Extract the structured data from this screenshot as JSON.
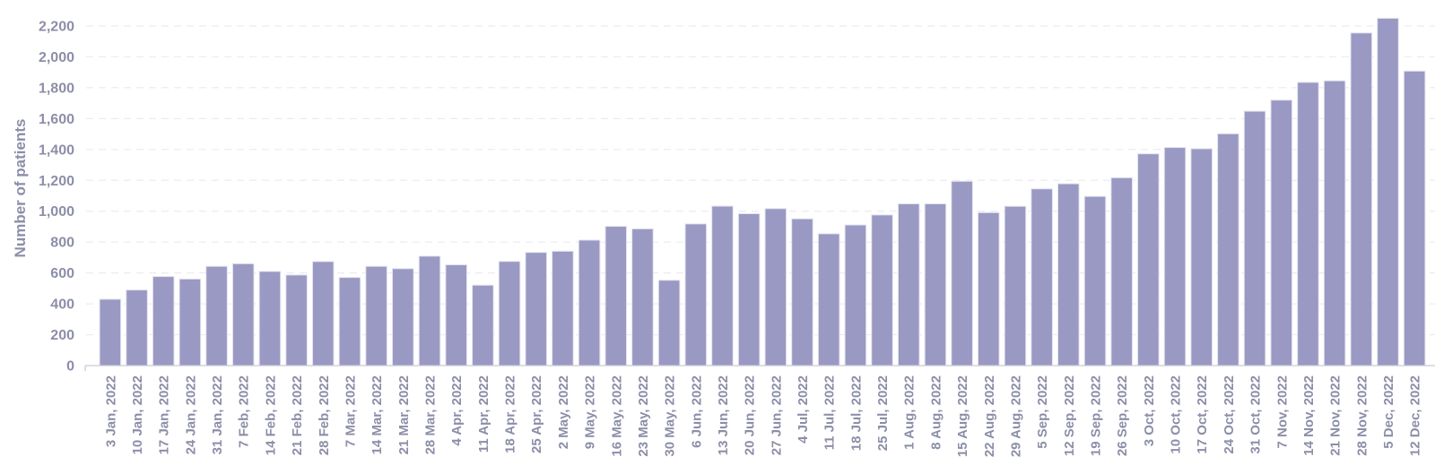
{
  "chart_data": {
    "type": "bar",
    "title": "",
    "xlabel": "",
    "ylabel": "Number of patients",
    "ylim": [
      0,
      2200
    ],
    "yticks": [
      0,
      200,
      400,
      600,
      800,
      1000,
      1200,
      1400,
      1600,
      1800,
      2000,
      2200
    ],
    "ytick_labels": [
      "0",
      "200",
      "400",
      "600",
      "800",
      "1,000",
      "1,200",
      "1,400",
      "1,600",
      "1,800",
      "2,000",
      "2,200"
    ],
    "grid": "horizontal dashed",
    "legend": null,
    "bar_color": "#9999c3",
    "categories": [
      "3 Jan, 2022",
      "10 Jan, 2022",
      "17 Jan, 2022",
      "24 Jan, 2022",
      "31 Jan, 2022",
      "7 Feb, 2022",
      "14 Feb, 2022",
      "21 Feb, 2022",
      "28 Feb, 2022",
      "7 Mar, 2022",
      "14 Mar, 2022",
      "21 Mar, 2022",
      "28 Mar, 2022",
      "4 Apr, 2022",
      "11 Apr, 2022",
      "18 Apr, 2022",
      "25 Apr, 2022",
      "2 May, 2022",
      "9 May, 2022",
      "16 May, 2022",
      "23 May, 2022",
      "30 May, 2022",
      "6 Jun, 2022",
      "13 Jun, 2022",
      "20 Jun, 2022",
      "27 Jun, 2022",
      "4 Jul, 2022",
      "11 Jul, 2022",
      "18 Jul, 2022",
      "25 Jul, 2022",
      "1 Aug, 2022",
      "8 Aug, 2022",
      "15 Aug, 2022",
      "22 Aug, 2022",
      "29 Aug, 2022",
      "5 Sep, 2022",
      "12 Sep, 2022",
      "19 Sep, 2022",
      "26 Sep, 2022",
      "3 Oct, 2022",
      "10 Oct, 2022",
      "17 Oct, 2022",
      "24 Oct, 2022",
      "31 Oct, 2022",
      "7 Nov, 2022",
      "14 Nov, 2022",
      "21 Nov, 2022",
      "28 Nov, 2022",
      "5 Dec, 2022",
      "12 Dec, 2022"
    ],
    "series": [
      {
        "name": "Number of patients",
        "values": [
          430,
          490,
          577,
          561,
          643,
          660,
          610,
          587,
          674,
          571,
          643,
          628,
          709,
          653,
          521,
          675,
          733,
          741,
          813,
          902,
          886,
          553,
          918,
          1033,
          984,
          1017,
          951,
          854,
          911,
          976,
          1048,
          1048,
          1194,
          991,
          1032,
          1145,
          1178,
          1096,
          1217,
          1372,
          1413,
          1405,
          1502,
          1648,
          1720,
          1835,
          1845,
          2155,
          2250,
          1908
        ]
      }
    ]
  }
}
